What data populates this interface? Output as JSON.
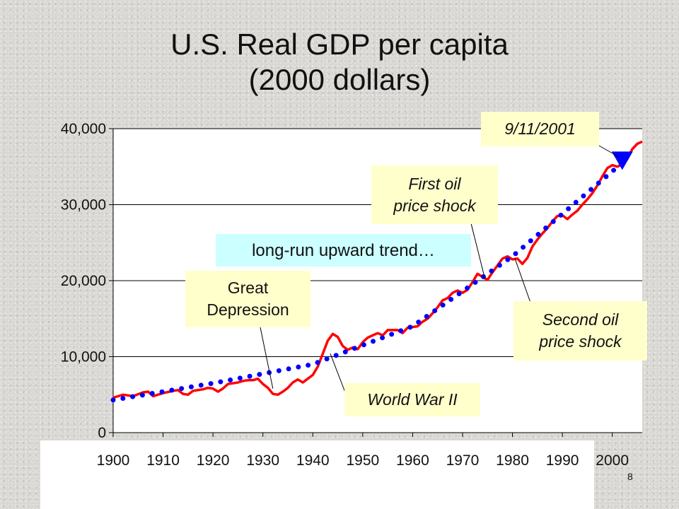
{
  "slide": {
    "title_line1": "U.S. Real GDP per capita",
    "title_line2": "(2000 dollars)",
    "slide_number": "8"
  },
  "annotations": {
    "sept11": "9/11/2001",
    "first_oil": "First oil\nprice shock",
    "trend": "long-run upward trend…",
    "great_depression": "Great\nDepression",
    "second_oil": "Second oil\nprice shock",
    "ww2": "World War II"
  },
  "colors": {
    "gdp_line": "#ff0000",
    "trend_dots": "#0000ff",
    "marker": "#0000ff",
    "callout_fill": "#ffffcc",
    "trend_fill": "#ccffff"
  },
  "chart_data": {
    "type": "line",
    "title": "U.S. Real GDP per capita (2000 dollars)",
    "xlim": [
      1900,
      2006
    ],
    "ylim": [
      0,
      40000
    ],
    "y_ticks": [
      "0",
      "10,000",
      "20,000",
      "30,000",
      "40,000"
    ],
    "x_ticks": [
      "1900",
      "1910",
      "1920",
      "1930",
      "1940",
      "1950",
      "1960",
      "1970",
      "1980",
      "1990",
      "2000"
    ],
    "grid": "horizontal",
    "series": [
      {
        "style": "solid",
        "color": "#ff0000",
        "x": [
          1900,
          1902,
          1904,
          1906,
          1907,
          1908,
          1910,
          1912,
          1913,
          1914,
          1915,
          1916,
          1918,
          1919,
          1920,
          1921,
          1922,
          1923,
          1924,
          1925,
          1926,
          1927,
          1928,
          1929,
          1930,
          1931,
          1932,
          1933,
          1934,
          1935,
          1936,
          1937,
          1938,
          1939,
          1940,
          1941,
          1942,
          1943,
          1944,
          1945,
          1946,
          1947,
          1948,
          1949,
          1950,
          1951,
          1952,
          1953,
          1954,
          1955,
          1956,
          1957,
          1958,
          1959,
          1960,
          1961,
          1962,
          1963,
          1964,
          1965,
          1966,
          1967,
          1968,
          1969,
          1970,
          1971,
          1972,
          1973,
          1974,
          1975,
          1976,
          1977,
          1978,
          1979,
          1980,
          1981,
          1982,
          1983,
          1984,
          1985,
          1986,
          1987,
          1988,
          1989,
          1990,
          1991,
          1992,
          1993,
          1994,
          1995,
          1996,
          1997,
          1998,
          1999,
          2000,
          2001,
          2002,
          2003,
          2004,
          2005,
          2006
        ],
        "y": [
          4600,
          5000,
          4800,
          5300,
          5400,
          4800,
          5200,
          5500,
          5600,
          5100,
          5000,
          5500,
          5700,
          5900,
          5800,
          5400,
          5800,
          6400,
          6500,
          6600,
          6800,
          6900,
          6900,
          7100,
          6400,
          5900,
          5100,
          5000,
          5400,
          5900,
          6600,
          7000,
          6600,
          7100,
          7600,
          8700,
          10400,
          12100,
          13000,
          12600,
          11400,
          10900,
          11200,
          11000,
          11900,
          12500,
          12800,
          13100,
          12800,
          13500,
          13500,
          13500,
          13100,
          13800,
          13900,
          14000,
          14600,
          15000,
          15700,
          16500,
          17400,
          17700,
          18400,
          18700,
          18400,
          18800,
          19800,
          20900,
          20500,
          20100,
          21100,
          22000,
          22900,
          23200,
          22800,
          22900,
          22200,
          23000,
          24500,
          25400,
          26200,
          26900,
          27800,
          28500,
          28600,
          28100,
          28700,
          29200,
          30000,
          30700,
          31500,
          32500,
          33700,
          34800,
          35200,
          35000,
          35300,
          36000,
          37300,
          38000,
          38300
        ]
      },
      {
        "style": "dotted",
        "color": "#0000ff",
        "x": [
          1900,
          1920,
          1940,
          1960,
          1980,
          2002
        ],
        "y": [
          4300,
          6500,
          9000,
          14000,
          23200,
          35500
        ]
      }
    ],
    "marker": {
      "label": "9/11/2001",
      "x": 2002,
      "y": 35500,
      "shape": "triangle-down",
      "color": "#0000ff"
    }
  }
}
